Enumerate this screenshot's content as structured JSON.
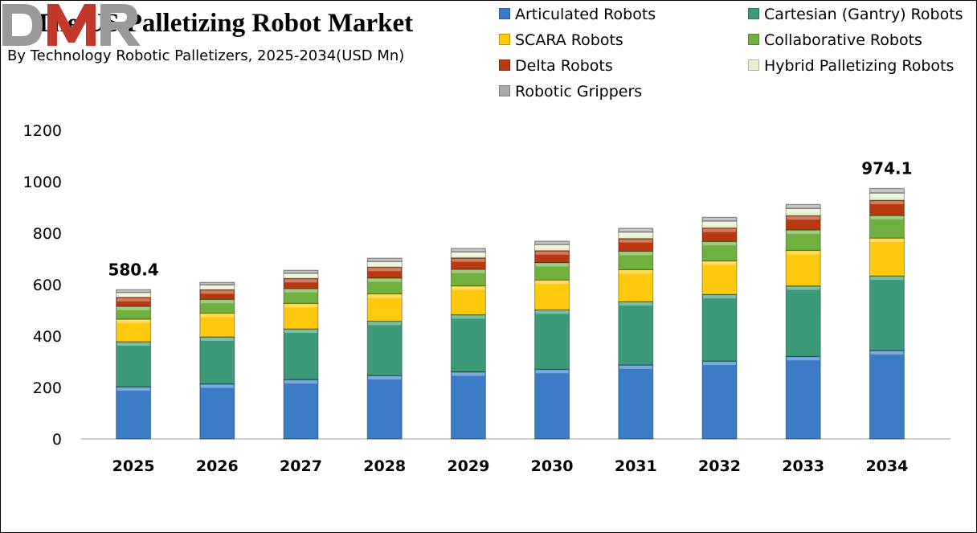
{
  "chart_data": {
    "type": "bar",
    "stacked": true,
    "title": "The US Palletizing Robot Market",
    "subtitle": "By Technology Robotic Palletizers, 2025-2034(USD Mn)",
    "xlabel": "",
    "ylabel": "",
    "ylim": [
      0,
      1200
    ],
    "yticks": [
      0,
      200,
      400,
      600,
      800,
      1000,
      1200
    ],
    "grid": false,
    "legend_position": "top-right",
    "categories": [
      "2025",
      "2026",
      "2027",
      "2028",
      "2029",
      "2030",
      "2031",
      "2032",
      "2033",
      "2034"
    ],
    "series": [
      {
        "name": "Articulated Robots",
        "color": "#3a7dc6",
        "values": [
          203.1,
          214,
          231,
          247,
          261,
          271,
          288,
          303,
          321,
          344
        ]
      },
      {
        "name": "Cartesian (Gantry) Robots",
        "color": "#3d9a78",
        "values": [
          174.9,
          183,
          197,
          211,
          222,
          231,
          246,
          259,
          274,
          290
        ]
      },
      {
        "name": "SCARA Robots",
        "color": "#ffc90e",
        "values": [
          88.1,
          92,
          99,
          106,
          112,
          116,
          124,
          130,
          138,
          147
        ]
      },
      {
        "name": "Collaborative Robots",
        "color": "#6fb03f",
        "values": [
          50.0,
          54,
          58,
          62,
          65,
          68,
          72,
          76,
          80,
          88
        ]
      },
      {
        "name": "Delta Robots",
        "color": "#b8380f",
        "values": [
          34.1,
          37,
          39,
          42,
          44,
          46,
          49,
          52,
          55,
          59
        ]
      },
      {
        "name": "Hybrid Palletizing Robots",
        "color": "#e6f0cc",
        "values": [
          19.2,
          19,
          20,
          22,
          23,
          24,
          25,
          27,
          28,
          28
        ]
      },
      {
        "name": "Robotic Grippers",
        "color": "#a9a9a9",
        "values": [
          11.0,
          10,
          12,
          13,
          14,
          13,
          15,
          15,
          16,
          18.1
        ]
      }
    ],
    "annotations": [
      {
        "category": "2025",
        "text": "580.4"
      },
      {
        "category": "2034",
        "text": "974.1"
      }
    ]
  },
  "logo": {
    "text": "DMR"
  }
}
